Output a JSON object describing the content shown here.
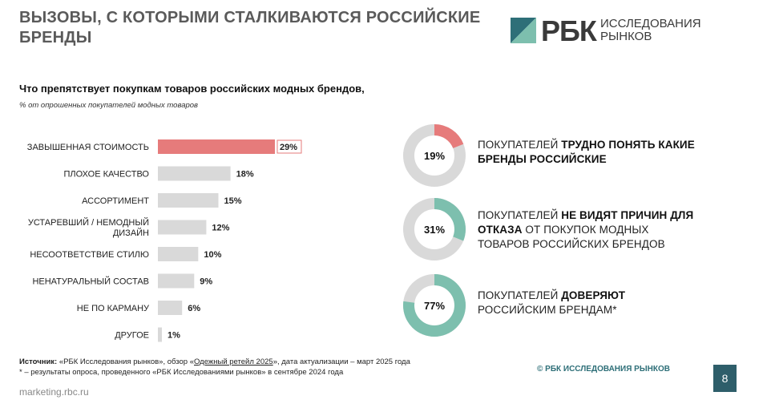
{
  "header": {
    "title": "ВЫЗОВЫ, С КОТОРЫМИ СТАЛКИВАЮТСЯ РОССИЙСКИЕ БРЕНДЫ",
    "logo_main": "РБК",
    "logo_sub_1": "ИССЛЕДОВАНИЯ",
    "logo_sub_2": "РЫНКОВ"
  },
  "chart_data": {
    "type": "bar",
    "orientation": "horizontal",
    "title": "Что препятствует покупкам товаров российских модных брендов,",
    "subtitle": "% от опрошенных покупателей модных товаров",
    "categories": [
      "ЗАВЫШЕННАЯ СТОИМОСТЬ",
      "ПЛОХОЕ КАЧЕСТВО",
      "АССОРТИМЕНТ",
      "УСТАРЕВШИЙ / НЕМОДНЫЙ ДИЗАЙН",
      "НЕСООТВЕТСТВИЕ СТИЛЮ",
      "НЕНАТУРАЛЬНЫЙ СОСТАВ",
      "НЕ ПО КАРМАНУ",
      "ДРУГОЕ"
    ],
    "category_lines": [
      [
        "ЗАВЫШЕННАЯ СТОИМОСТЬ"
      ],
      [
        "ПЛОХОЕ КАЧЕСТВО"
      ],
      [
        "АССОРТИМЕНТ"
      ],
      [
        "УСТАРЕВШИЙ / НЕМОДНЫЙ",
        "ДИЗАЙН"
      ],
      [
        "НЕСООТВЕТСТВИЕ СТИЛЮ"
      ],
      [
        "НЕНАТУРАЛЬНЫЙ СОСТАВ"
      ],
      [
        "НЕ ПО КАРМАНУ"
      ],
      [
        "ДРУГОЕ"
      ]
    ],
    "values": [
      29,
      18,
      15,
      12,
      10,
      9,
      6,
      1
    ],
    "value_labels": [
      "29%",
      "18%",
      "15%",
      "12%",
      "10%",
      "9%",
      "6%",
      "1%"
    ],
    "highlight_index": 0,
    "colors": {
      "highlight": "#e67b7b",
      "default": "#d9d9d9",
      "highlight_border": "#e67b7b"
    },
    "xlim": [
      0,
      29
    ],
    "grid": false,
    "legend": "none"
  },
  "donuts": [
    {
      "value": 19,
      "label": "19%",
      "color": "#e67b7b",
      "track": "#d9d9d9",
      "text_prefix": "ПОКУПАТЕЛЕЙ ",
      "text_bold": "ТРУДНО ПОНЯТЬ КАКИЕ БРЕНДЫ РОССИЙСКИЕ",
      "text_rest": ""
    },
    {
      "value": 31,
      "label": "31%",
      "color": "#7dbfae",
      "track": "#d9d9d9",
      "text_prefix": "ПОКУПАТЕЛЕЙ ",
      "text_bold": "НЕ ВИДЯТ ПРИЧИН ДЛЯ ОТКАЗА",
      "text_rest": " ОТ ПОКУПОК МОДНЫХ ТОВАРОВ РОССИЙСКИХ БРЕНДОВ"
    },
    {
      "value": 77,
      "label": "77%",
      "color": "#7dbfae",
      "track": "#d9d9d9",
      "text_prefix": "ПОКУПАТЕЛЕЙ ",
      "text_bold": "ДОВЕРЯЮТ",
      "text_rest": " РОССИЙСКИМ БРЕНДАМ*"
    }
  ],
  "source": {
    "label": "Источник:",
    "text_1": " «РБК Исследования рынков»,  обзор «",
    "link": "Одежный ретейл 2025",
    "text_2": "», дата актуализации – март 2025 года",
    "footnote": "* – результаты опроса, проведенного «РБК Исследованиями рынков» в сентябре 2024 года"
  },
  "copyright": "© РБК ИССЛЕДОВАНИЯ РЫНКОВ",
  "page_number": "8",
  "footer_url": "marketing.rbc.ru"
}
